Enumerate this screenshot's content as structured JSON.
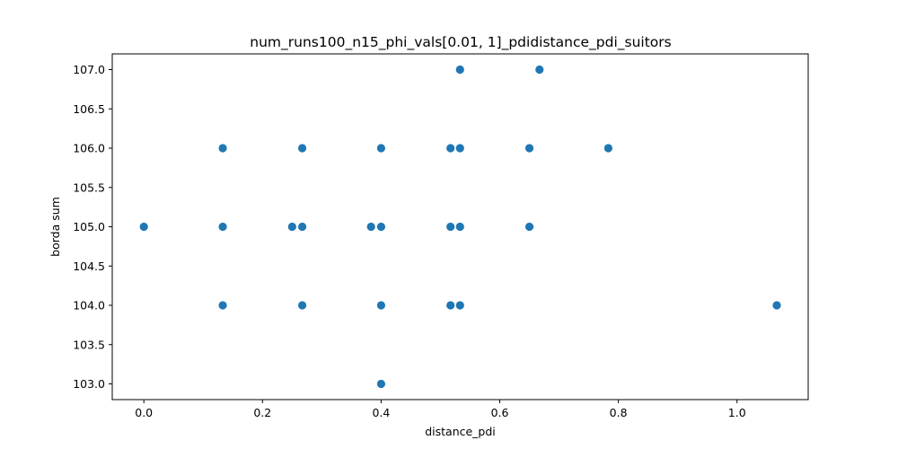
{
  "chart_data": {
    "type": "scatter",
    "title": "num_runs100_n15_phi_vals[0.01, 1]_pdidistance_pdi_suitors",
    "xlabel": "distance_pdi",
    "ylabel": "borda sum",
    "xlim": [
      -0.0533,
      1.12
    ],
    "ylim": [
      102.8,
      107.2
    ],
    "x_ticks": [
      0.0,
      0.2,
      0.4,
      0.6,
      0.8,
      1.0
    ],
    "x_tick_labels": [
      "0.0",
      "0.2",
      "0.4",
      "0.6",
      "0.8",
      "1.0"
    ],
    "y_ticks": [
      103.0,
      103.5,
      104.0,
      104.5,
      105.0,
      105.5,
      106.0,
      106.5,
      107.0
    ],
    "y_tick_labels": [
      "103.0",
      "103.5",
      "104.0",
      "104.5",
      "105.0",
      "105.5",
      "106.0",
      "106.5",
      "107.0"
    ],
    "grid": false,
    "marker_color": "#1f77b4",
    "points": [
      {
        "x": 0.0,
        "y": 105.0
      },
      {
        "x": 0.133,
        "y": 106.0
      },
      {
        "x": 0.133,
        "y": 105.0
      },
      {
        "x": 0.133,
        "y": 104.0
      },
      {
        "x": 0.25,
        "y": 105.0
      },
      {
        "x": 0.267,
        "y": 106.0
      },
      {
        "x": 0.267,
        "y": 105.0
      },
      {
        "x": 0.267,
        "y": 104.0
      },
      {
        "x": 0.383,
        "y": 105.0
      },
      {
        "x": 0.4,
        "y": 106.0
      },
      {
        "x": 0.4,
        "y": 105.0
      },
      {
        "x": 0.4,
        "y": 104.0
      },
      {
        "x": 0.4,
        "y": 103.0
      },
      {
        "x": 0.517,
        "y": 106.0
      },
      {
        "x": 0.517,
        "y": 105.0
      },
      {
        "x": 0.517,
        "y": 104.0
      },
      {
        "x": 0.533,
        "y": 107.0
      },
      {
        "x": 0.533,
        "y": 106.0
      },
      {
        "x": 0.533,
        "y": 105.0
      },
      {
        "x": 0.533,
        "y": 104.0
      },
      {
        "x": 0.65,
        "y": 106.0
      },
      {
        "x": 0.65,
        "y": 105.0
      },
      {
        "x": 0.667,
        "y": 107.0
      },
      {
        "x": 0.783,
        "y": 106.0
      },
      {
        "x": 1.067,
        "y": 104.0
      }
    ]
  }
}
